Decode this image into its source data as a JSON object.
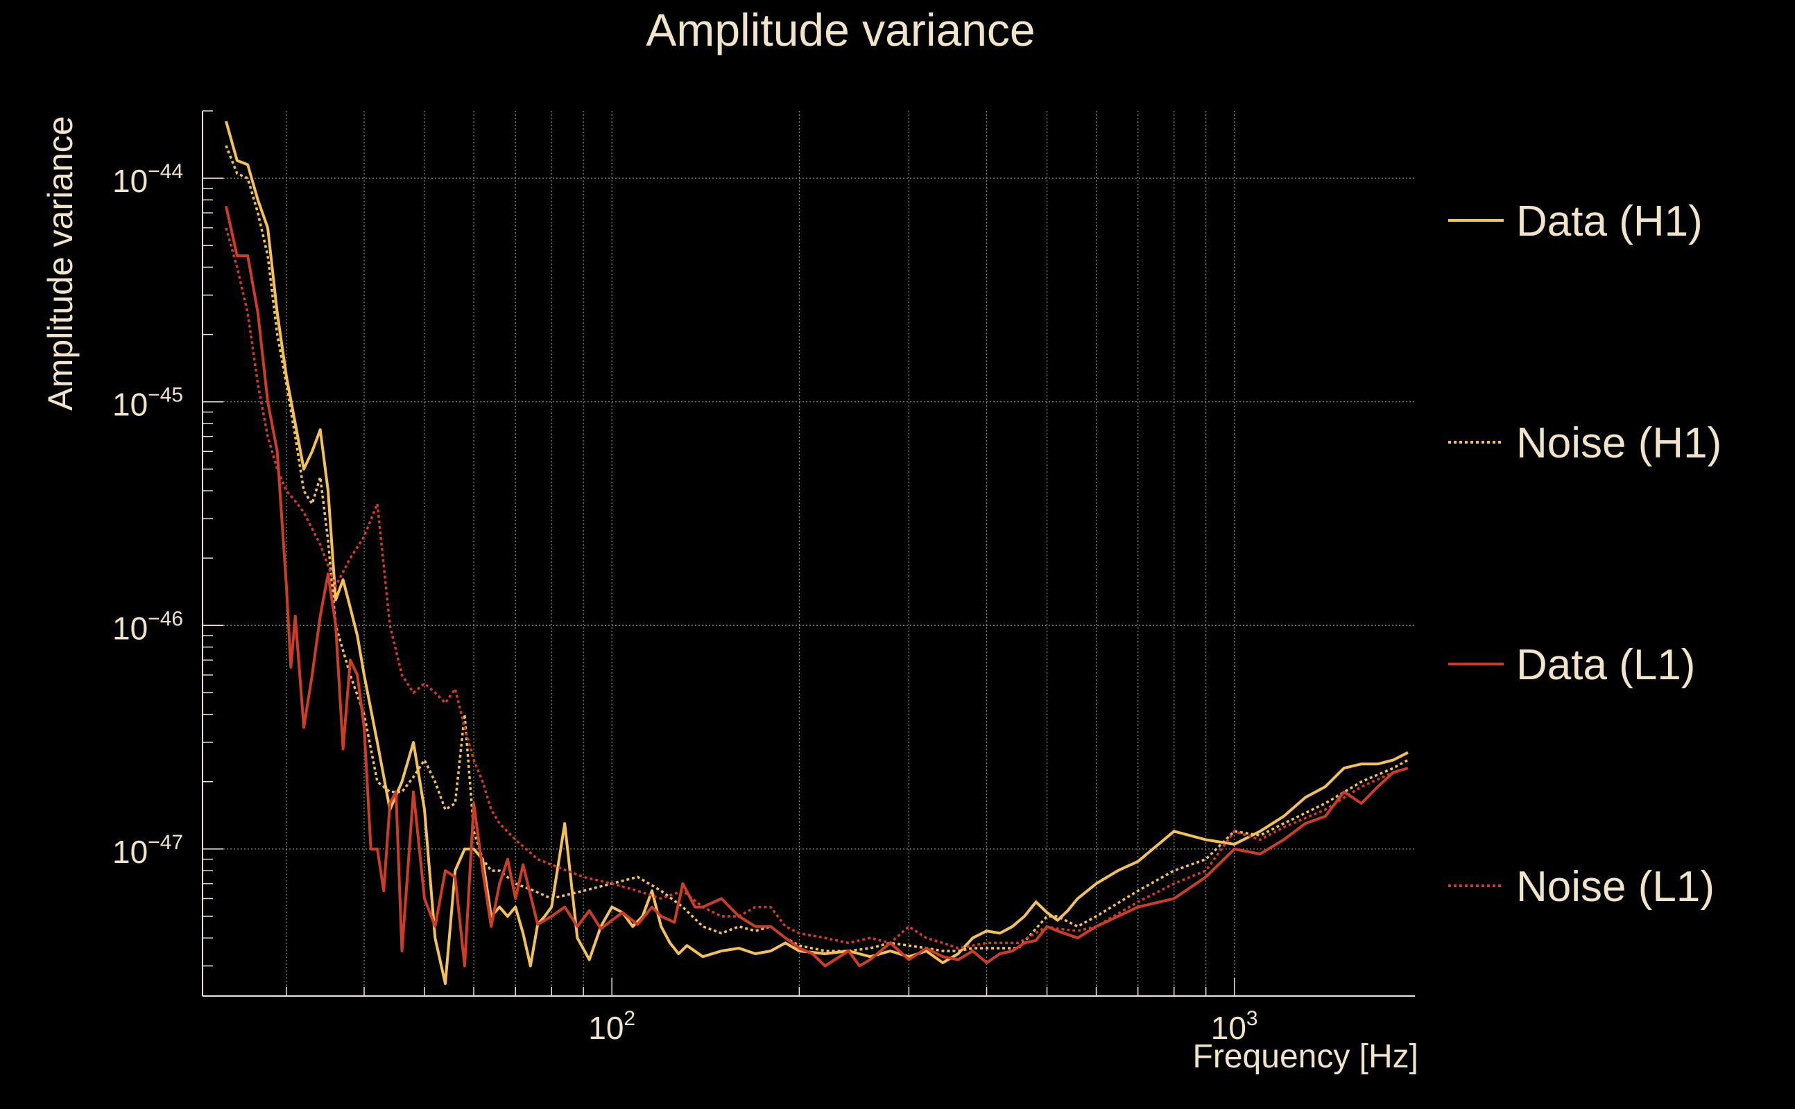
{
  "chart_data": {
    "type": "line",
    "title": "Amplitude variance",
    "xlabel": "Frequency [Hz]",
    "ylabel": "Amplitude variance",
    "x_scale": "log",
    "y_scale": "log",
    "xlim": [
      22,
      1950
    ],
    "ylim": [
      2.2e-48,
      2e-44
    ],
    "grid": true,
    "legend_position": "right",
    "x_ticks": [
      {
        "value": 100,
        "base": "10",
        "exp": "2"
      },
      {
        "value": 1000,
        "base": "10",
        "exp": "3"
      }
    ],
    "y_ticks": [
      {
        "value": 1e-44,
        "base": "10",
        "exp": "−44"
      },
      {
        "value": 1e-45,
        "base": "10",
        "exp": "−45"
      },
      {
        "value": 1e-46,
        "base": "10",
        "exp": "−46"
      },
      {
        "value": 1e-47,
        "base": "10",
        "exp": "−47"
      }
    ],
    "colors": {
      "background": "#000000",
      "text": "#f2e4c9",
      "grid": "#8c8c8c",
      "h1": "#f2c15a",
      "l1": "#cc3d28"
    },
    "series": [
      {
        "name": "Data (H1)",
        "color": "#f2c15a",
        "dash": "solid",
        "x": [
          24,
          25,
          26,
          27,
          28,
          29,
          30,
          31,
          32,
          33,
          34,
          35,
          36,
          37,
          38,
          39,
          40,
          42,
          44,
          46,
          48,
          50,
          52,
          54,
          56,
          58,
          60,
          62,
          64,
          66,
          68,
          70,
          72,
          74,
          76,
          78,
          80,
          84,
          88,
          92,
          96,
          100,
          104,
          108,
          112,
          116,
          120,
          124,
          128,
          132,
          140,
          150,
          160,
          170,
          180,
          190,
          200,
          220,
          240,
          260,
          280,
          300,
          320,
          340,
          360,
          380,
          400,
          420,
          440,
          460,
          480,
          500,
          520,
          540,
          560,
          600,
          650,
          700,
          800,
          900,
          1000,
          1100,
          1200,
          1300,
          1400,
          1500,
          1600,
          1700,
          1800,
          1900
        ],
        "y": [
          1.8e-44,
          1.2e-44,
          1.15e-44,
          8e-45,
          6e-45,
          2.5e-45,
          1.3e-45,
          8e-46,
          5e-46,
          6e-46,
          7.5e-46,
          4e-46,
          1.3e-46,
          1.6e-46,
          1.2e-46,
          9e-47,
          6e-47,
          3e-47,
          1.5e-47,
          2e-47,
          3e-47,
          1.5e-47,
          4e-48,
          2.5e-48,
          8e-48,
          1e-47,
          1e-47,
          9e-48,
          5e-48,
          5.5e-48,
          5e-48,
          5.5e-48,
          4.2e-48,
          3e-48,
          4.6e-48,
          5e-48,
          5.5e-48,
          1.3e-47,
          4e-48,
          3.2e-48,
          4.5e-48,
          5.5e-48,
          5.2e-48,
          4.5e-48,
          5e-48,
          6.5e-48,
          4.5e-48,
          3.8e-48,
          3.4e-48,
          3.7e-48,
          3.3e-48,
          3.5e-48,
          3.6e-48,
          3.4e-48,
          3.5e-48,
          3.8e-48,
          3.5e-48,
          3.4e-48,
          3.5e-48,
          3.3e-48,
          3.5e-48,
          3.3e-48,
          3.5e-48,
          3.1e-48,
          3.4e-48,
          4e-48,
          4.3e-48,
          4.2e-48,
          4.5e-48,
          5e-48,
          5.8e-48,
          5.2e-48,
          4.8e-48,
          5.3e-48,
          6e-48,
          7e-48,
          8e-48,
          8.8e-48,
          1.2e-47,
          1.1e-47,
          1.05e-47,
          1.2e-47,
          1.4e-47,
          1.7e-47,
          1.9e-47,
          2.3e-47,
          2.4e-47,
          2.4e-47,
          2.5e-47,
          2.7e-47
        ]
      },
      {
        "name": "Noise (H1)",
        "color": "#f2c15a",
        "dash": "dotted",
        "x": [
          24,
          25,
          26,
          27,
          28,
          29,
          30,
          31,
          32,
          33,
          34,
          35,
          36,
          38,
          40,
          42,
          44,
          46,
          48,
          50,
          52,
          54,
          56,
          58,
          60,
          62,
          64,
          66,
          70,
          75,
          80,
          90,
          100,
          110,
          120,
          130,
          140,
          150,
          160,
          170,
          180,
          190,
          200,
          220,
          240,
          260,
          280,
          300,
          320,
          340,
          360,
          380,
          400,
          450,
          500,
          520,
          560,
          600,
          700,
          800,
          900,
          1000,
          1100,
          1200,
          1400,
          1600,
          1800,
          1900
        ],
        "y": [
          1.4e-44,
          1.05e-44,
          1e-44,
          7e-45,
          4.5e-45,
          2e-45,
          1.2e-45,
          7e-46,
          4e-46,
          3.5e-46,
          4.6e-46,
          2.4e-46,
          1e-46,
          6e-47,
          4e-47,
          2e-47,
          1.8e-47,
          1.8e-47,
          2.1e-47,
          2.5e-47,
          2e-47,
          1.5e-47,
          1.6e-47,
          4e-47,
          1.2e-47,
          9e-48,
          8e-48,
          8e-48,
          7e-48,
          6.5e-48,
          6e-48,
          6.5e-48,
          7e-48,
          7.5e-48,
          6.5e-48,
          5.5e-48,
          4.5e-48,
          4.2e-48,
          4.5e-48,
          4.3e-48,
          4.5e-48,
          4e-48,
          3.7e-48,
          3.5e-48,
          3.5e-48,
          3.6e-48,
          3.8e-48,
          3.7e-48,
          3.6e-48,
          3.5e-48,
          3.5e-48,
          3.6e-48,
          3.6e-48,
          3.6e-48,
          5e-48,
          5e-48,
          4.5e-48,
          5e-48,
          6.5e-48,
          8e-48,
          9e-48,
          1.2e-47,
          1.15e-47,
          1.3e-47,
          1.6e-47,
          2e-47,
          2.3e-47,
          2.5e-47
        ]
      },
      {
        "name": "Data (L1)",
        "color": "#cc3d28",
        "dash": "solid",
        "x": [
          24,
          25,
          26,
          27,
          28,
          29,
          30,
          30.5,
          31,
          32,
          33,
          34,
          35,
          36,
          37,
          38,
          39,
          40,
          41,
          42,
          43,
          44,
          45,
          46,
          48,
          50,
          52,
          54,
          56,
          58,
          60,
          62,
          64,
          66,
          68,
          70,
          72,
          76,
          80,
          84,
          88,
          92,
          96,
          100,
          104,
          110,
          116,
          120,
          126,
          130,
          136,
          140,
          150,
          160,
          170,
          180,
          190,
          200,
          210,
          220,
          240,
          250,
          260,
          280,
          300,
          320,
          340,
          360,
          380,
          400,
          420,
          440,
          460,
          480,
          500,
          520,
          560,
          600,
          700,
          800,
          900,
          1000,
          1100,
          1200,
          1300,
          1400,
          1500,
          1600,
          1700,
          1800,
          1900
        ],
        "y": [
          7.5e-45,
          4.5e-45,
          4.5e-45,
          2.5e-45,
          1e-45,
          6e-46,
          1.5e-46,
          6.5e-47,
          1.1e-46,
          3.5e-47,
          6e-47,
          1.1e-46,
          1.7e-46,
          1e-46,
          2.8e-47,
          7e-47,
          6e-47,
          3.5e-47,
          1e-47,
          1e-47,
          6.5e-48,
          1.6e-47,
          1.8e-47,
          3.5e-48,
          1.8e-47,
          6e-48,
          4.5e-48,
          8e-48,
          7.5e-48,
          3e-48,
          1.6e-47,
          8e-48,
          4.5e-48,
          7e-48,
          9e-48,
          6e-48,
          8.5e-48,
          4.6e-48,
          5e-48,
          5.5e-48,
          4.5e-48,
          5.3e-48,
          4.4e-48,
          4.8e-48,
          5.2e-48,
          4.6e-48,
          5.5e-48,
          5e-48,
          4.7e-48,
          7e-48,
          5.5e-48,
          5.5e-48,
          6e-48,
          5e-48,
          4.5e-48,
          4.5e-48,
          4e-48,
          3.6e-48,
          3.4e-48,
          3e-48,
          3.5e-48,
          3e-48,
          3.2e-48,
          3.8e-48,
          3.2e-48,
          3.6e-48,
          3.3e-48,
          3.2e-48,
          3.5e-48,
          3.1e-48,
          3.4e-48,
          3.5e-48,
          3.8e-48,
          3.9e-48,
          4.5e-48,
          4.3e-48,
          4e-48,
          4.5e-48,
          5.5e-48,
          6e-48,
          7.5e-48,
          1e-47,
          9.5e-48,
          1.1e-47,
          1.3e-47,
          1.4e-47,
          1.8e-47,
          1.6e-47,
          1.9e-47,
          2.2e-47,
          2.3e-47
        ]
      },
      {
        "name": "Noise (L1)",
        "color": "#cc3d28",
        "dash": "dotted",
        "x": [
          24,
          25,
          26,
          27,
          28,
          29,
          30,
          31,
          32,
          34,
          36,
          38,
          40,
          42,
          44,
          46,
          48,
          50,
          52,
          54,
          56,
          58,
          60,
          62,
          64,
          66,
          70,
          76,
          80,
          90,
          100,
          110,
          120,
          130,
          140,
          150,
          160,
          170,
          180,
          190,
          200,
          220,
          240,
          260,
          280,
          300,
          320,
          340,
          360,
          380,
          400,
          450,
          500,
          520,
          560,
          600,
          700,
          800,
          900,
          1000,
          1100,
          1200,
          1400,
          1600,
          1800,
          1900
        ],
        "y": [
          6e-45,
          4e-45,
          2.5e-45,
          1.2e-45,
          7e-46,
          5e-46,
          4e-46,
          3.6e-46,
          3.2e-46,
          2.3e-46,
          1.5e-46,
          2e-46,
          2.5e-46,
          3.5e-46,
          1e-46,
          6e-47,
          5e-47,
          5.5e-47,
          5e-47,
          4.5e-47,
          5.2e-47,
          3.5e-47,
          2.5e-47,
          2e-47,
          1.5e-47,
          1.3e-47,
          1.1e-47,
          9e-48,
          8.5e-48,
          7.5e-48,
          7e-48,
          6.5e-48,
          6e-48,
          6.5e-48,
          5.5e-48,
          5e-48,
          5e-48,
          5.5e-48,
          5.5e-48,
          4.5e-48,
          4.2e-48,
          4e-48,
          3.8e-48,
          4e-48,
          3.8e-48,
          4.5e-48,
          4e-48,
          3.8e-48,
          3.6e-48,
          3.7e-48,
          3.8e-48,
          3.8e-48,
          4.5e-48,
          4.4e-48,
          4.3e-48,
          4.5e-48,
          5.8e-48,
          7e-48,
          8e-48,
          1.2e-47,
          1.1e-47,
          1.25e-47,
          1.5e-47,
          1.9e-47,
          2.2e-47,
          2.3e-47
        ]
      }
    ]
  }
}
